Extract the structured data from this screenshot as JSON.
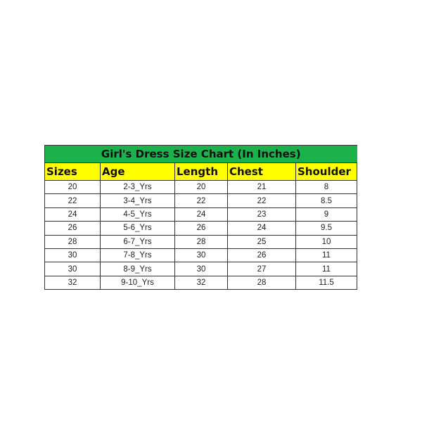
{
  "title": "Girl's Dress Size Chart (In Inches)",
  "colors": {
    "title_bg": "#1db14b",
    "header_bg": "#ffff00"
  },
  "headers": [
    "Sizes",
    "Age",
    "Length",
    "Chest",
    "Shoulder"
  ],
  "rows": [
    [
      "20",
      "2-3_Yrs",
      "20",
      "21",
      "8"
    ],
    [
      "22",
      "3-4_Yrs",
      "22",
      "22",
      "8.5"
    ],
    [
      "24",
      "4-5_Yrs",
      "24",
      "23",
      "9"
    ],
    [
      "26",
      "5-6_Yrs",
      "26",
      "24",
      "9.5"
    ],
    [
      "28",
      "6-7_Yrs",
      "28",
      "25",
      "10"
    ],
    [
      "30",
      "7-8_Yrs",
      "30",
      "26",
      "11"
    ],
    [
      "30",
      "8-9_Yrs",
      "30",
      "27",
      "11"
    ],
    [
      "32",
      "9-10_Yrs",
      "32",
      "28",
      "11.5"
    ]
  ]
}
